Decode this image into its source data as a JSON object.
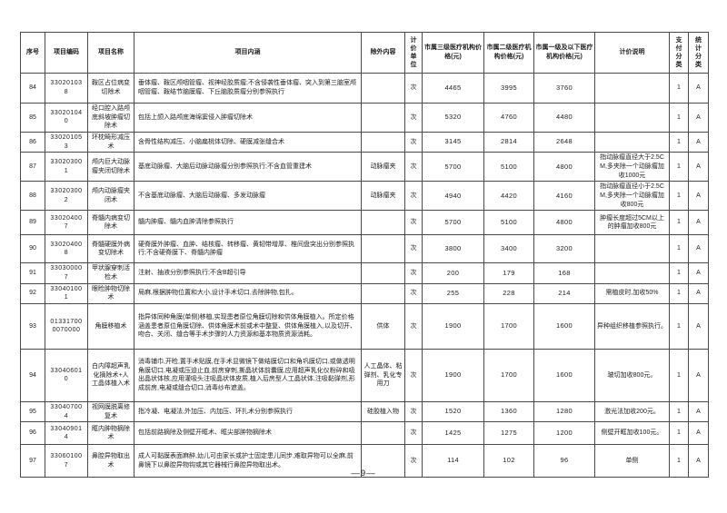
{
  "page": {
    "footer_page_number": "—9—"
  },
  "table": {
    "headers": {
      "no": "序号",
      "code": "项目编码",
      "name": "项目名称",
      "content": "项目内涵",
      "exclusion": "除外内容",
      "unit": "计价单位",
      "price_tier3": "市属三级医疗机构价格(元)",
      "price_tier2": "市属二级医疗机构价格(元)",
      "price_tier1": "市属一级及以下医疗机构价格(元)",
      "note": "计价说明",
      "pay": "支付分类",
      "stat": "统计分类"
    },
    "rows": [
      {
        "no": "84",
        "code": "330201038",
        "name": "鞍区占位病变切除术",
        "content": "垂体瘤、鞍区颅咽管瘤、视神经胶质瘤;不含侵袭性垂体瘤、突入到第三脑室颅咽管瘤、鞍结节脑膜瘤、下丘脑胶质瘤分别参照执行",
        "exclusion": "",
        "unit": "次",
        "price3": "4465",
        "price2": "3995",
        "price1": "3760",
        "note": "",
        "pay": "1",
        "stat": "A"
      },
      {
        "no": "85",
        "code": "330201040",
        "name": "经口腔入路颅底斜坡肿瘤切除术",
        "content": "包括上颌入路颅底海绵窦侵入肿瘤切除术",
        "exclusion": "",
        "unit": "次",
        "price3": "5320",
        "price2": "4760",
        "price1": "4480",
        "note": "",
        "pay": "1",
        "stat": "A"
      },
      {
        "no": "86",
        "code": "330201053",
        "name": "环枕畸形减压术",
        "content": "含骨性结构减压、小脑扁桃体切除、硬膜减张缝合术",
        "exclusion": "",
        "unit": "次",
        "price3": "3145",
        "price2": "2814",
        "price1": "2648",
        "note": "",
        "pay": "1",
        "stat": "A"
      },
      {
        "no": "87",
        "code": "330203001",
        "name": "颅内巨大动脉瘤夹闭切除术",
        "content": "基底动脉瘤、大脑后动脉动脉瘤分别参照执行;不含血管重建术",
        "exclusion": "动脉瘤夹",
        "unit": "次",
        "price3": "5700",
        "price2": "5100",
        "price1": "4800",
        "note": "指动脉瘤直径大于2.5CM,多夹除一个动脉瘤加收1000元",
        "pay": "1",
        "stat": "A"
      },
      {
        "no": "88",
        "code": "330203002",
        "name": "颅内动脉瘤夹闭术",
        "content": "不含基底动脉瘤、大脑后动脉瘤、多发动脉瘤",
        "exclusion": "动脉瘤夹",
        "unit": "次",
        "price3": "4940",
        "price2": "4420",
        "price1": "4160",
        "note": "指动脉瘤直径小于2.5CM,多夹除一个动脉瘤加收800元",
        "pay": "1",
        "stat": "A"
      },
      {
        "no": "89",
        "code": "330204007",
        "name": "脊髓内病变切除术",
        "content": "髓内肿瘤、髓内血肿清除参照执行",
        "exclusion": "",
        "unit": "次",
        "price3": "5700",
        "price2": "5100",
        "price1": "4800",
        "note": "肿瘤长度超过5CM以上的肿瘤加收800元",
        "pay": "1",
        "stat": "A"
      },
      {
        "no": "90",
        "code": "330204008",
        "name": "脊髓硬膜外病变切除术",
        "content": "硬脊膜外肿瘤、血肿、结核瘤、转移瘤、黄韧带增厚、椎间盘突出分别参照执行;不含硬脊膜下、脊髓内肿瘤",
        "exclusion": "",
        "unit": "次",
        "price3": "3800",
        "price2": "3400",
        "price1": "3200",
        "note": "",
        "pay": "1",
        "stat": "A"
      },
      {
        "no": "91",
        "code": "330300007",
        "name": "甲状腺穿刺活检术",
        "content": "注射、抽液分别参照执行;不含B超引导",
        "exclusion": "",
        "unit": "次",
        "price3": "200",
        "price2": "179",
        "price1": "168",
        "note": "",
        "pay": "1",
        "stat": "A"
      },
      {
        "no": "92",
        "code": "330401001",
        "name": "眼睑肿物切除术",
        "content": "局麻,根据肿物位置和大小,设计手术切口,去除肿物,包扎。",
        "exclusion": "",
        "unit": "次",
        "price3": "255",
        "price2": "228",
        "price1": "214",
        "note": "需植皮时,加收50%",
        "pay": "1",
        "stat": "A"
      },
      {
        "no": "93",
        "code": "013317000070000",
        "name": "角膜移植术",
        "content": "指异体同种角膜(单侧)移植,实现患者原位角膜切除和供体角膜植入。所定价格涵盖患者原位角膜切除、供体角膜术前或术中整复、供体角膜植入,以及切开、吻合、关闭、缝合等手术步骤的人力资源和基本物质资源消耗。",
        "exclusion": "供体",
        "unit": "次",
        "price3": "1900",
        "price2": "1700",
        "price1": "1600",
        "note": "异种组织移植参照执行。",
        "pay": "1",
        "stat": "A"
      },
      {
        "no": "94",
        "code": "330406010",
        "name": "白内障超声乳化摘除术+人工晶体植入术",
        "content": "消毒铺巾,开睑,置手术贴膜,在手术显微镜下做结膜切口和角巩膜切口,或做透明角膜切口,电凝或压迫止血,前房穿刺,撕晶状体前囊膜,应用超声乳化仪粉碎和吸出晶状体核,应用灌吸头注吸晶状体皮质,植入后房型人工晶状体,注吸黏弹剂,形成前房,电凝或缝合切口,消毒纱布遮盖。",
        "exclusion": "人工晶体、粘弹剂、乳化专用刀",
        "unit": "次",
        "price3": "1900",
        "price2": "1700",
        "price1": "1600",
        "note": "玻切加收800元。",
        "pay": "1",
        "stat": "A"
      },
      {
        "no": "95",
        "code": "330407004",
        "name": "视网膜脱离修复术",
        "content": "指冷凝、电凝法,外加压、内加压、环扎术分别参照执行",
        "exclusion": "硅胶植入物",
        "unit": "次",
        "price3": "1520",
        "price2": "1360",
        "price1": "1280",
        "note": "激光法加收200元。",
        "pay": "1",
        "stat": "A"
      },
      {
        "no": "96",
        "code": "330409014",
        "name": "眶内肿物摘除术",
        "content": "包括前路摘除及侧壁开眶术、眶尖部肿物摘除术",
        "exclusion": "",
        "unit": "次",
        "price3": "1425",
        "price2": "1275",
        "price1": "1200",
        "note": "侧壁开眶加收100元。",
        "pay": "1",
        "stat": "A"
      },
      {
        "no": "97",
        "code": "330601007",
        "name": "鼻腔异物取出术",
        "content": "成人可黏膜表面麻醉,幼儿可由家长或护士固定患儿同步,难取异物可以全麻,前鼻镜下以鼻腔异物钩或其它器械行鼻腔异物取出术。",
        "exclusion": "",
        "unit": "次",
        "price3": "114",
        "price2": "102",
        "price1": "96",
        "note": "单侧",
        "pay": "1",
        "stat": "A"
      }
    ]
  }
}
